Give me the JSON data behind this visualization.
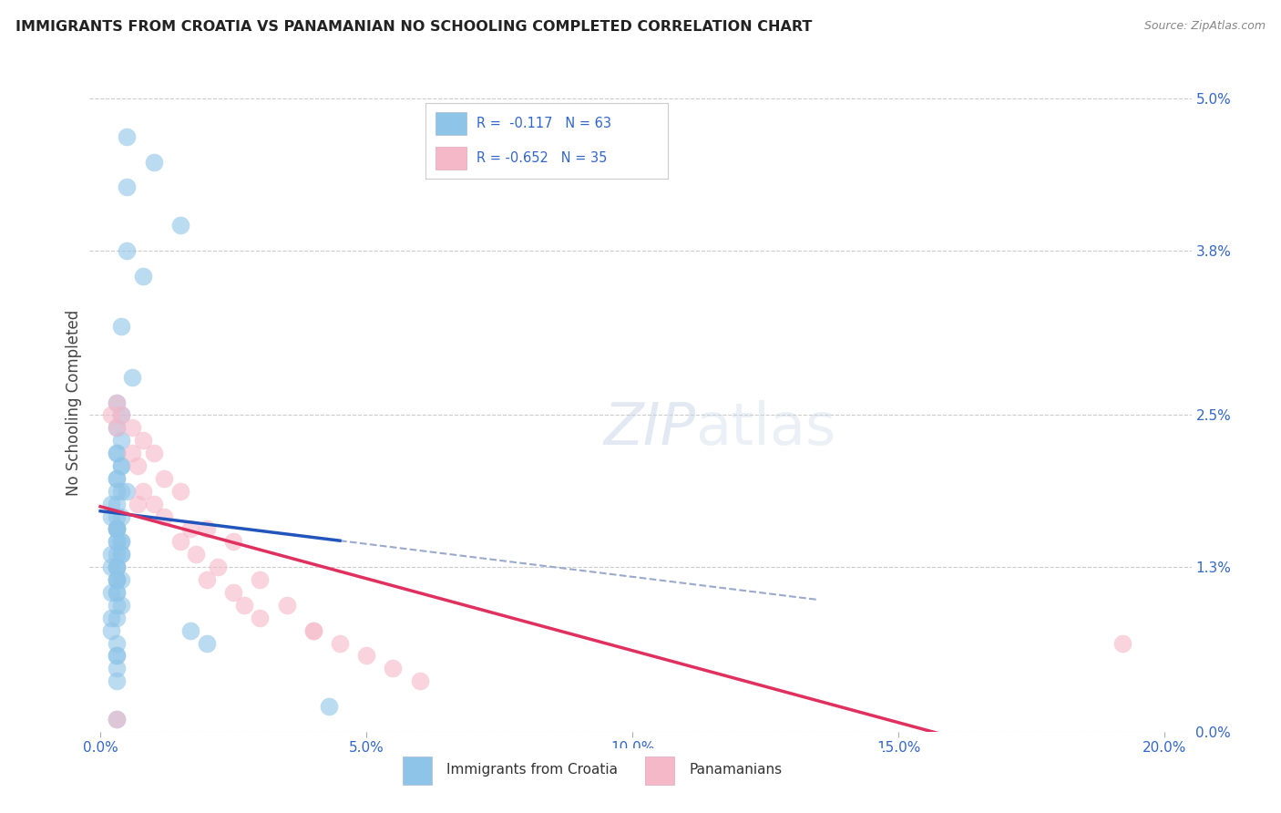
{
  "title": "IMMIGRANTS FROM CROATIA VS PANAMANIAN NO SCHOOLING COMPLETED CORRELATION CHART",
  "source": "Source: ZipAtlas.com",
  "xlabel_ticks": [
    "0.0%",
    "5.0%",
    "10.0%",
    "15.0%",
    "20.0%"
  ],
  "xlabel_tick_vals": [
    0.0,
    0.05,
    0.1,
    0.15,
    0.2
  ],
  "ylabel": "No Schooling Completed",
  "ylim": [
    0.0,
    0.052
  ],
  "xlim": [
    -0.002,
    0.205
  ],
  "legend_entry1": "R =  -0.117   N = 63",
  "legend_entry2": "R = -0.652   N = 35",
  "legend_label1": "Immigrants from Croatia",
  "legend_label2": "Panamanians",
  "color_blue": "#8ec4e8",
  "color_pink": "#f5b8c8",
  "line_blue": "#2255bb",
  "line_pink": "#e03060",
  "line_dash": "#99aacc",
  "background": "#ffffff",
  "grid_color": "#cccccc",
  "ytick_vals": [
    0.0,
    0.013,
    0.025,
    0.038,
    0.05
  ],
  "ytick_labels": [
    "0.0%",
    "1.3%",
    "2.5%",
    "3.8%",
    "5.0%"
  ],
  "croatia_x": [
    0.005,
    0.01,
    0.005,
    0.015,
    0.005,
    0.008,
    0.004,
    0.006,
    0.003,
    0.004,
    0.003,
    0.004,
    0.003,
    0.003,
    0.004,
    0.004,
    0.003,
    0.003,
    0.005,
    0.003,
    0.004,
    0.003,
    0.002,
    0.002,
    0.004,
    0.003,
    0.003,
    0.003,
    0.003,
    0.003,
    0.004,
    0.003,
    0.003,
    0.004,
    0.003,
    0.004,
    0.004,
    0.002,
    0.003,
    0.003,
    0.002,
    0.003,
    0.003,
    0.004,
    0.003,
    0.003,
    0.002,
    0.003,
    0.003,
    0.004,
    0.003,
    0.003,
    0.002,
    0.002,
    0.017,
    0.003,
    0.02,
    0.003,
    0.003,
    0.003,
    0.003,
    0.043,
    0.003
  ],
  "croatia_y": [
    0.047,
    0.045,
    0.043,
    0.04,
    0.038,
    0.036,
    0.032,
    0.028,
    0.026,
    0.025,
    0.024,
    0.023,
    0.022,
    0.022,
    0.021,
    0.021,
    0.02,
    0.02,
    0.019,
    0.019,
    0.019,
    0.018,
    0.018,
    0.017,
    0.017,
    0.017,
    0.016,
    0.016,
    0.016,
    0.016,
    0.015,
    0.015,
    0.015,
    0.015,
    0.014,
    0.014,
    0.014,
    0.014,
    0.013,
    0.013,
    0.013,
    0.013,
    0.012,
    0.012,
    0.012,
    0.012,
    0.011,
    0.011,
    0.011,
    0.01,
    0.01,
    0.009,
    0.009,
    0.008,
    0.008,
    0.007,
    0.007,
    0.006,
    0.006,
    0.005,
    0.004,
    0.002,
    0.001
  ],
  "panama_x": [
    0.003,
    0.002,
    0.004,
    0.003,
    0.006,
    0.008,
    0.006,
    0.01,
    0.007,
    0.012,
    0.008,
    0.015,
    0.01,
    0.007,
    0.012,
    0.017,
    0.02,
    0.015,
    0.025,
    0.018,
    0.022,
    0.03,
    0.02,
    0.025,
    0.035,
    0.027,
    0.03,
    0.04,
    0.04,
    0.045,
    0.05,
    0.055,
    0.06,
    0.192,
    0.003
  ],
  "panama_y": [
    0.026,
    0.025,
    0.025,
    0.024,
    0.024,
    0.023,
    0.022,
    0.022,
    0.021,
    0.02,
    0.019,
    0.019,
    0.018,
    0.018,
    0.017,
    0.016,
    0.016,
    0.015,
    0.015,
    0.014,
    0.013,
    0.012,
    0.012,
    0.011,
    0.01,
    0.01,
    0.009,
    0.008,
    0.008,
    0.007,
    0.006,
    0.005,
    0.004,
    0.007,
    0.001
  ],
  "croatia_line_x": [
    0.0,
    0.043
  ],
  "croatia_line_y": [
    0.0155,
    0.0125
  ],
  "panama_line_x": [
    0.0,
    0.192
  ],
  "panama_line_y": [
    0.021,
    -0.001
  ],
  "dash_line_x": [
    0.043,
    0.13
  ],
  "dash_line_y": [
    0.0125,
    0.0075
  ]
}
